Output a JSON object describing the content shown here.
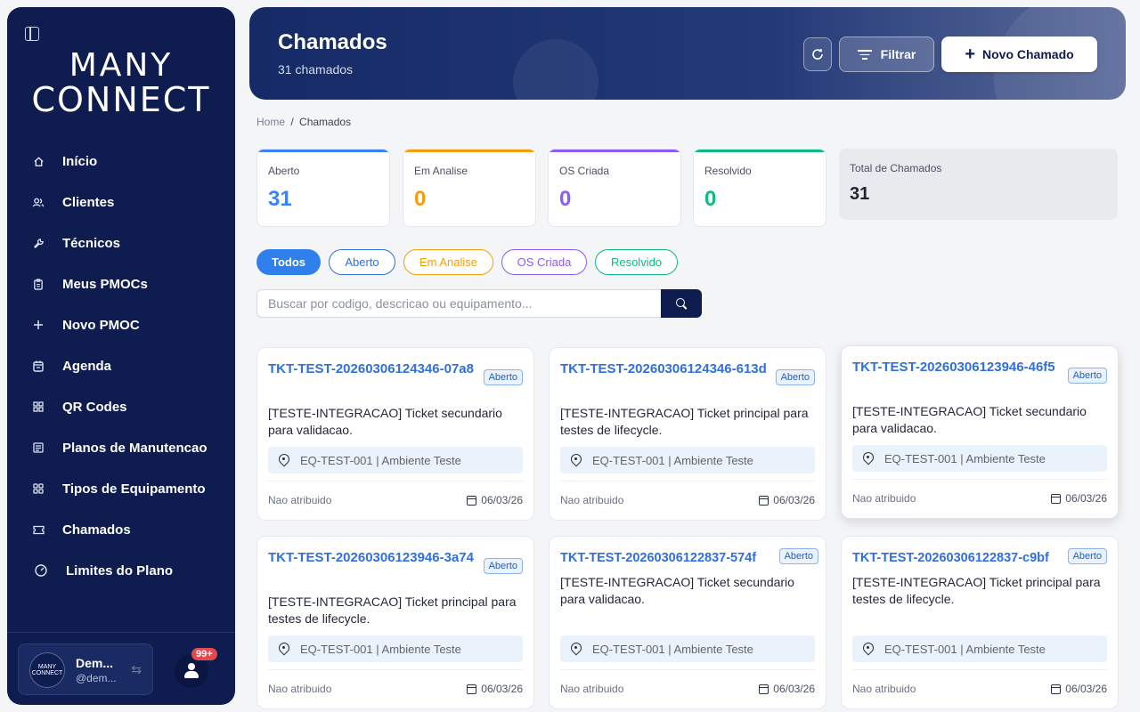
{
  "sidebar": {
    "logo": {
      "line1": "MANY",
      "line2": "CONNECT"
    },
    "items": [
      {
        "label": "Início",
        "icon": "home-icon"
      },
      {
        "label": "Clientes",
        "icon": "users-icon"
      },
      {
        "label": "Técnicos",
        "icon": "wrench-icon"
      },
      {
        "label": "Meus PMOCs",
        "icon": "clipboard-icon"
      },
      {
        "label": "Novo PMOC",
        "icon": "plus-icon"
      },
      {
        "label": "Agenda",
        "icon": "calendar-icon"
      },
      {
        "label": "QR Codes",
        "icon": "qrcode-icon"
      },
      {
        "label": "Planos de Manutencao",
        "icon": "list-icon"
      },
      {
        "label": "Tipos de Equipamento",
        "icon": "grid-icon"
      },
      {
        "label": "Chamados",
        "icon": "ticket-icon"
      },
      {
        "label": "Limites do Plano",
        "icon": "gauge-icon"
      }
    ],
    "user": {
      "name": "Dem...",
      "handle": "@dem...",
      "avatar_line1": "MANY",
      "avatar_line2": "CONNECT"
    },
    "notifications": {
      "count": "99+"
    }
  },
  "header": {
    "title": "Chamados",
    "subtitle": "31 chamados",
    "filter_label": "Filtrar",
    "new_label": "Novo Chamado"
  },
  "breadcrumb": {
    "home": "Home",
    "separator": "/",
    "current": "Chamados"
  },
  "stats": [
    {
      "label": "Aberto",
      "value": "31",
      "color": "#3b82f6"
    },
    {
      "label": "Em Analise",
      "value": "0",
      "color": "#f59e0b"
    },
    {
      "label": "OS Criada",
      "value": "0",
      "color": "#8b5cf6"
    },
    {
      "label": "Resolvido",
      "value": "0",
      "color": "#10b981"
    }
  ],
  "total": {
    "label": "Total de Chamados",
    "value": "31"
  },
  "filters": [
    {
      "label": "Todos",
      "color": "#2f80ed",
      "active": true
    },
    {
      "label": "Aberto",
      "color": "#2f6fe0"
    },
    {
      "label": "Em Analise",
      "color": "#f59e0b"
    },
    {
      "label": "OS Criada",
      "color": "#8b5cf6"
    },
    {
      "label": "Resolvido",
      "color": "#10b981"
    }
  ],
  "search": {
    "placeholder": "Buscar por codigo, descricao ou equipamento..."
  },
  "tickets": [
    {
      "code": "TKT-TEST-20260306124346-07a8",
      "status": "Aberto",
      "description": "[TESTE-INTEGRACAO] Ticket secundario para validacao.",
      "equipment": "EQ-TEST-001 | Ambiente Teste",
      "assignee": "Nao atribuido",
      "date": "06/03/26"
    },
    {
      "code": "TKT-TEST-20260306124346-613d",
      "status": "Aberto",
      "description": "[TESTE-INTEGRACAO] Ticket principal para testes de lifecycle.",
      "equipment": "EQ-TEST-001 | Ambiente Teste",
      "assignee": "Nao atribuido",
      "date": "06/03/26"
    },
    {
      "code": "TKT-TEST-20260306123946-46f5",
      "status": "Aberto",
      "description": "[TESTE-INTEGRACAO] Ticket secundario para validacao.",
      "equipment": "EQ-TEST-001 | Ambiente Teste",
      "assignee": "Nao atribuido",
      "date": "06/03/26"
    },
    {
      "code": "TKT-TEST-20260306123946-3a74",
      "status": "Aberto",
      "description": "[TESTE-INTEGRACAO] Ticket principal para testes de lifecycle.",
      "equipment": "EQ-TEST-001 | Ambiente Teste",
      "assignee": "Nao atribuido",
      "date": "06/03/26"
    },
    {
      "code": "TKT-TEST-20260306122837-574f",
      "status": "Aberto",
      "description": "[TESTE-INTEGRACAO] Ticket secundario para validacao.",
      "equipment": "EQ-TEST-001 | Ambiente Teste",
      "assignee": "Nao atribuido",
      "date": "06/03/26"
    },
    {
      "code": "TKT-TEST-20260306122837-c9bf",
      "status": "Aberto",
      "description": "[TESTE-INTEGRACAO] Ticket principal para testes de lifecycle.",
      "equipment": "EQ-TEST-001 | Ambiente Teste",
      "assignee": "Nao atribuido",
      "date": "06/03/26"
    }
  ]
}
